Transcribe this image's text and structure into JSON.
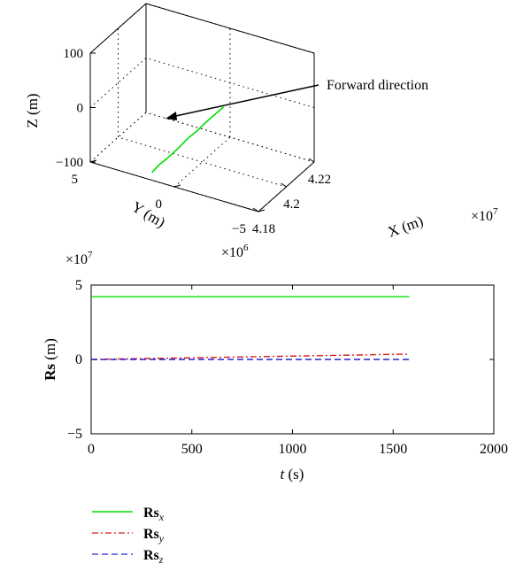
{
  "chart_data": [
    {
      "type": "line",
      "projection": "3d",
      "title": "",
      "xlabel": "X (m)",
      "ylabel": "Y (m)",
      "zlabel": "Z (m)",
      "x_ticks": [
        "4.18",
        "4.2",
        "4.22"
      ],
      "x_multiplier": "×10",
      "x_exponent": "7",
      "y_ticks": [
        "−5",
        "0",
        "5"
      ],
      "y_multiplier": "×10",
      "y_exponent": "6",
      "z_ticks": [
        "−100",
        "0",
        "100"
      ],
      "xlim": [
        41800000,
        42200000
      ],
      "ylim": [
        -5000000,
        5000000
      ],
      "zlim": [
        -100,
        100
      ],
      "grid": true,
      "annotation": "Forward direction",
      "series": [
        {
          "color": "#00e000",
          "points": [
            [
              42190000,
              300000,
              -45
            ],
            [
              42150000,
              400000,
              -48
            ],
            [
              42100000,
              600000,
              -55
            ],
            [
              42050000,
              700000,
              -60
            ],
            [
              42000000,
              900000,
              -66
            ],
            [
              41950000,
              1000000,
              -72
            ],
            [
              41900000,
              1200000,
              -80
            ],
            [
              41860000,
              1400000,
              -86
            ],
            [
              41820000,
              1500000,
              -92
            ]
          ]
        }
      ]
    },
    {
      "type": "line",
      "title": "",
      "xlabel_italic": "t",
      "xlabel_unit": " (s)",
      "ylabel_bold": "Rs",
      "ylabel_unit": " (m)",
      "y_multiplier": "×10",
      "y_exponent": "7",
      "xlim": [
        0,
        2000
      ],
      "ylim": [
        -5,
        5
      ],
      "x_ticks": [
        0,
        500,
        1000,
        1500,
        2000
      ],
      "y_ticks": [
        -5,
        0,
        5
      ],
      "grid": false,
      "legend_position": "below",
      "series": [
        {
          "name_main": "Rs",
          "name_sub": "x",
          "color": "#00e000",
          "dash": "solid",
          "x": [
            0,
            1580
          ],
          "values": [
            4.22,
            4.22
          ]
        },
        {
          "name_main": "Rs",
          "name_sub": "y",
          "color": "#d62020",
          "dash": "dashdot",
          "x": [
            0,
            400,
            800,
            1200,
            1580
          ],
          "values": [
            0,
            0.09,
            0.18,
            0.27,
            0.36
          ]
        },
        {
          "name_main": "Rs",
          "name_sub": "z",
          "color": "#2020d0",
          "dash": "dashed",
          "x": [
            0,
            1580
          ],
          "values": [
            0,
            0
          ]
        }
      ]
    }
  ]
}
